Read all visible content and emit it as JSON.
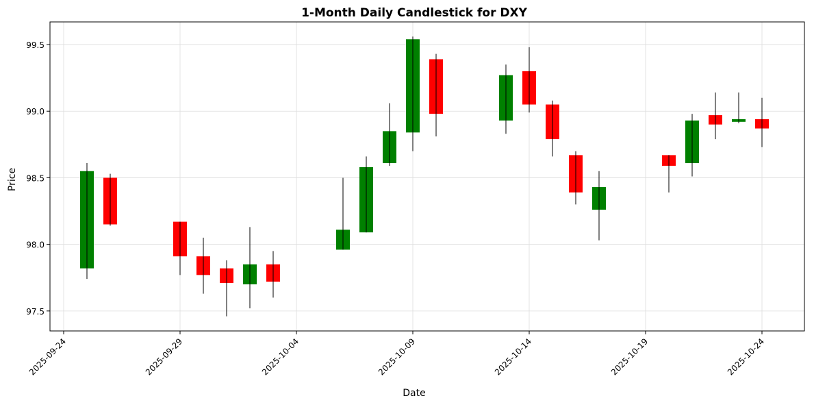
{
  "chart_data": {
    "type": "candlestick",
    "title": "1-Month Daily Candlestick for DXY",
    "xlabel": "Date",
    "ylabel": "Price",
    "ylim": [
      97.35,
      99.67
    ],
    "y_ticks": [
      97.5,
      98.0,
      98.5,
      99.0,
      99.5
    ],
    "y_tick_labels": [
      "97.5",
      "98.0",
      "98.5",
      "99.0",
      "99.5"
    ],
    "x_ticks": [
      "2025-09-24",
      "2025-09-29",
      "2025-10-04",
      "2025-10-09",
      "2025-10-14",
      "2025-10-19",
      "2025-10-24"
    ],
    "grid": true,
    "colors": {
      "up": "#008000",
      "down": "#ff0000",
      "wick": "#000000"
    },
    "candles": [
      {
        "date": "2025-09-25",
        "open": 97.82,
        "high": 98.61,
        "low": 97.74,
        "close": 98.55
      },
      {
        "date": "2025-09-26",
        "open": 98.5,
        "high": 98.53,
        "low": 98.14,
        "close": 98.15
      },
      {
        "date": "2025-09-29",
        "open": 98.17,
        "high": 98.17,
        "low": 97.77,
        "close": 97.91
      },
      {
        "date": "2025-09-30",
        "open": 97.91,
        "high": 98.05,
        "low": 97.63,
        "close": 97.77
      },
      {
        "date": "2025-10-01",
        "open": 97.82,
        "high": 97.88,
        "low": 97.46,
        "close": 97.71
      },
      {
        "date": "2025-10-02",
        "open": 97.7,
        "high": 98.13,
        "low": 97.52,
        "close": 97.85
      },
      {
        "date": "2025-10-03",
        "open": 97.85,
        "high": 97.95,
        "low": 97.6,
        "close": 97.72
      },
      {
        "date": "2025-10-06",
        "open": 97.96,
        "high": 98.5,
        "low": 97.96,
        "close": 98.11
      },
      {
        "date": "2025-10-07",
        "open": 98.09,
        "high": 98.66,
        "low": 98.09,
        "close": 98.58
      },
      {
        "date": "2025-10-08",
        "open": 98.61,
        "high": 99.06,
        "low": 98.59,
        "close": 98.85
      },
      {
        "date": "2025-10-09",
        "open": 98.84,
        "high": 99.56,
        "low": 98.7,
        "close": 99.54
      },
      {
        "date": "2025-10-10",
        "open": 99.39,
        "high": 99.43,
        "low": 98.81,
        "close": 98.98
      },
      {
        "date": "2025-10-13",
        "open": 98.93,
        "high": 99.35,
        "low": 98.83,
        "close": 99.27
      },
      {
        "date": "2025-10-14",
        "open": 99.3,
        "high": 99.48,
        "low": 98.99,
        "close": 99.05
      },
      {
        "date": "2025-10-15",
        "open": 99.05,
        "high": 99.08,
        "low": 98.66,
        "close": 98.79
      },
      {
        "date": "2025-10-16",
        "open": 98.67,
        "high": 98.7,
        "low": 98.3,
        "close": 98.39
      },
      {
        "date": "2025-10-17",
        "open": 98.26,
        "high": 98.55,
        "low": 98.03,
        "close": 98.43
      },
      {
        "date": "2025-10-20",
        "open": 98.67,
        "high": 98.67,
        "low": 98.39,
        "close": 98.59
      },
      {
        "date": "2025-10-21",
        "open": 98.61,
        "high": 98.98,
        "low": 98.51,
        "close": 98.93
      },
      {
        "date": "2025-10-22",
        "open": 98.97,
        "high": 99.14,
        "low": 98.79,
        "close": 98.9
      },
      {
        "date": "2025-10-23",
        "open": 98.92,
        "high": 99.14,
        "low": 98.91,
        "close": 98.94
      },
      {
        "date": "2025-10-24",
        "open": 98.94,
        "high": 99.1,
        "low": 98.73,
        "close": 98.87
      }
    ]
  }
}
